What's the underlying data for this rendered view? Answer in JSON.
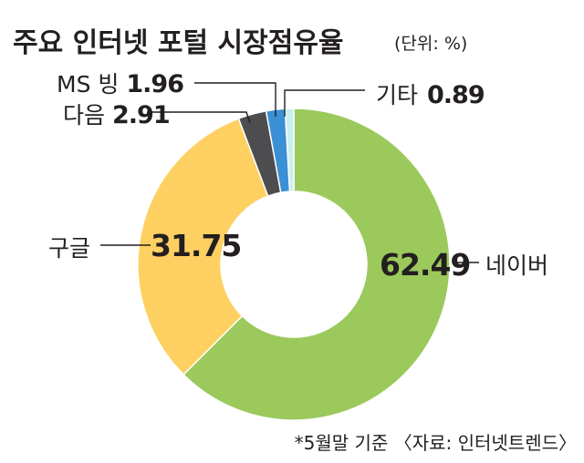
{
  "chart_data": {
    "type": "pie",
    "title": "주요 인터넷 포털 시장점유율",
    "unit_note": "(단위: %)",
    "footnote": "*5월말 기준 〈자료: 인터넷트렌드〉",
    "slices": [
      {
        "name": "네이버",
        "value": 62.49,
        "value_label": "62.49",
        "color": "#9bc95c"
      },
      {
        "name": "구글",
        "value": 31.75,
        "value_label": "31.75",
        "color": "#fdd061"
      },
      {
        "name": "다음",
        "value": 2.91,
        "value_label": "2.91",
        "color": "#4d4d4f"
      },
      {
        "name": "MS 빙",
        "value": 1.96,
        "value_label": "1.96",
        "color": "#3b8fd4"
      },
      {
        "name": "기타",
        "value": 0.89,
        "value_label": "0.89",
        "color": "#c9eef0"
      }
    ]
  }
}
